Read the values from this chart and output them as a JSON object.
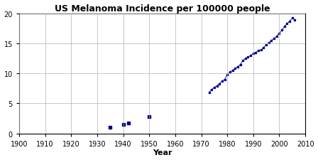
{
  "title": "US Melanoma Incidence per 100000 people",
  "xlabel": "Year",
  "ylabel": "",
  "xlim": [
    1900,
    2010
  ],
  "ylim": [
    0,
    20
  ],
  "xticks": [
    1900,
    1910,
    1920,
    1930,
    1940,
    1950,
    1960,
    1970,
    1980,
    1990,
    2000,
    2010
  ],
  "yticks": [
    0,
    5,
    10,
    15,
    20
  ],
  "marker_color": "#00008B",
  "sparse_data": [
    [
      1935,
      1.0
    ],
    [
      1940,
      1.5
    ],
    [
      1942,
      1.7
    ],
    [
      1950,
      2.8
    ]
  ],
  "dense_data": [
    [
      1973,
      6.8
    ],
    [
      1974,
      7.3
    ],
    [
      1975,
      7.7
    ],
    [
      1976,
      7.9
    ],
    [
      1977,
      8.3
    ],
    [
      1978,
      8.7
    ],
    [
      1979,
      9.0
    ],
    [
      1980,
      9.8
    ],
    [
      1981,
      10.2
    ],
    [
      1982,
      10.5
    ],
    [
      1983,
      10.8
    ],
    [
      1984,
      11.1
    ],
    [
      1985,
      11.5
    ],
    [
      1986,
      12.1
    ],
    [
      1987,
      12.5
    ],
    [
      1988,
      12.7
    ],
    [
      1989,
      13.0
    ],
    [
      1990,
      13.3
    ],
    [
      1991,
      13.5
    ],
    [
      1992,
      13.8
    ],
    [
      1993,
      13.9
    ],
    [
      1994,
      14.3
    ],
    [
      1995,
      14.8
    ],
    [
      1996,
      15.1
    ],
    [
      1997,
      15.5
    ],
    [
      1998,
      15.8
    ],
    [
      1999,
      16.2
    ],
    [
      2000,
      16.7
    ],
    [
      2001,
      17.2
    ],
    [
      2002,
      17.8
    ],
    [
      2003,
      18.3
    ],
    [
      2004,
      18.7
    ],
    [
      2005,
      19.2
    ],
    [
      2006,
      18.9
    ]
  ],
  "background_color": "#ffffff",
  "grid_color": "#b0b0b0",
  "title_fontsize": 9,
  "label_fontsize": 8,
  "tick_fontsize": 7
}
